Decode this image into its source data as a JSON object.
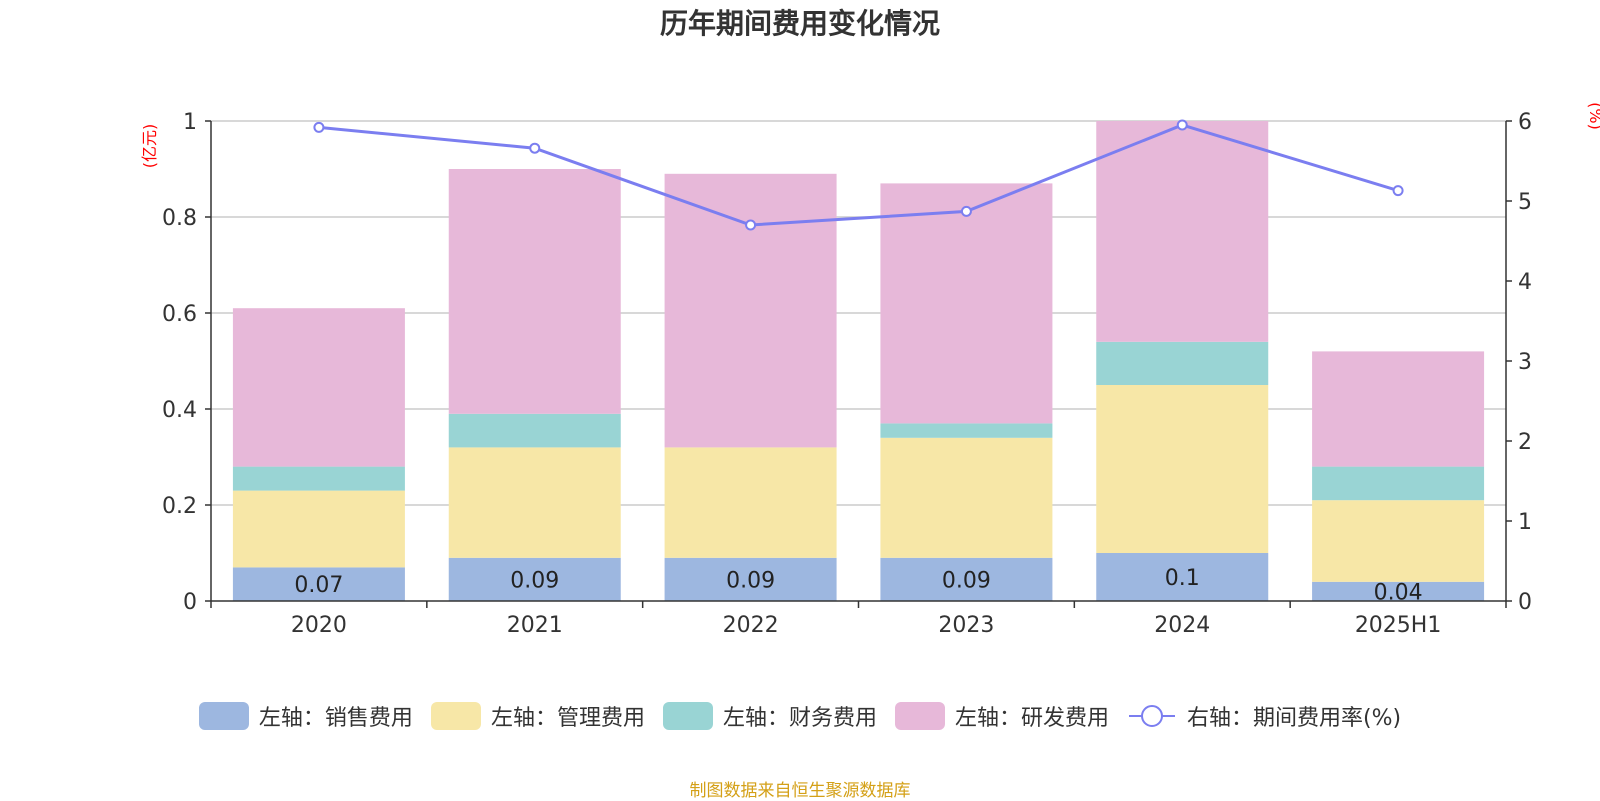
{
  "chart_data": {
    "type": "bar",
    "title": "历年期间费用变化情况",
    "categories": [
      "2020",
      "2021",
      "2022",
      "2023",
      "2024",
      "2025H1"
    ],
    "stacked": true,
    "left_axis": {
      "unit_label": "(亿元)",
      "ylim": [
        0,
        1
      ],
      "ticks": [
        "0",
        "0.2",
        "0.4",
        "0.6",
        "0.8",
        "1"
      ],
      "tick_values": [
        0,
        0.2,
        0.4,
        0.6,
        0.8,
        1
      ]
    },
    "right_axis": {
      "unit_label": "(%)",
      "ylim": [
        0,
        6
      ],
      "ticks": [
        "0",
        "1",
        "2",
        "3",
        "4",
        "5",
        "6"
      ],
      "tick_values": [
        0,
        1,
        2,
        3,
        4,
        5,
        6
      ]
    },
    "series": [
      {
        "name": "左轴：销售费用",
        "axis": "left",
        "type": "bar",
        "color": "#9db7e0",
        "values": [
          0.07,
          0.09,
          0.09,
          0.09,
          0.1,
          0.04
        ],
        "labels": [
          "0.07",
          "0.09",
          "0.09",
          "0.09",
          "0.1",
          "0.04"
        ]
      },
      {
        "name": "左轴：管理费用",
        "axis": "left",
        "type": "bar",
        "color": "#f7e7a7",
        "values": [
          0.16,
          0.23,
          0.23,
          0.25,
          0.35,
          0.17
        ]
      },
      {
        "name": "左轴：财务费用",
        "axis": "left",
        "type": "bar",
        "color": "#99d4d4",
        "values": [
          0.05,
          0.07,
          0.0,
          0.03,
          0.09,
          0.07
        ]
      },
      {
        "name": "左轴：研发费用",
        "axis": "left",
        "type": "bar",
        "color": "#e7b8d9",
        "values": [
          0.33,
          0.51,
          0.57,
          0.5,
          0.46,
          0.24
        ]
      },
      {
        "name": "右轴：期间费用率(%)",
        "axis": "right",
        "type": "line",
        "color": "#7b7ef0",
        "values": [
          5.92,
          5.66,
          4.7,
          4.87,
          5.95,
          5.13
        ]
      }
    ],
    "grid": true,
    "legend_position": "bottom"
  },
  "source_note": "制图数据来自恒生聚源数据库"
}
